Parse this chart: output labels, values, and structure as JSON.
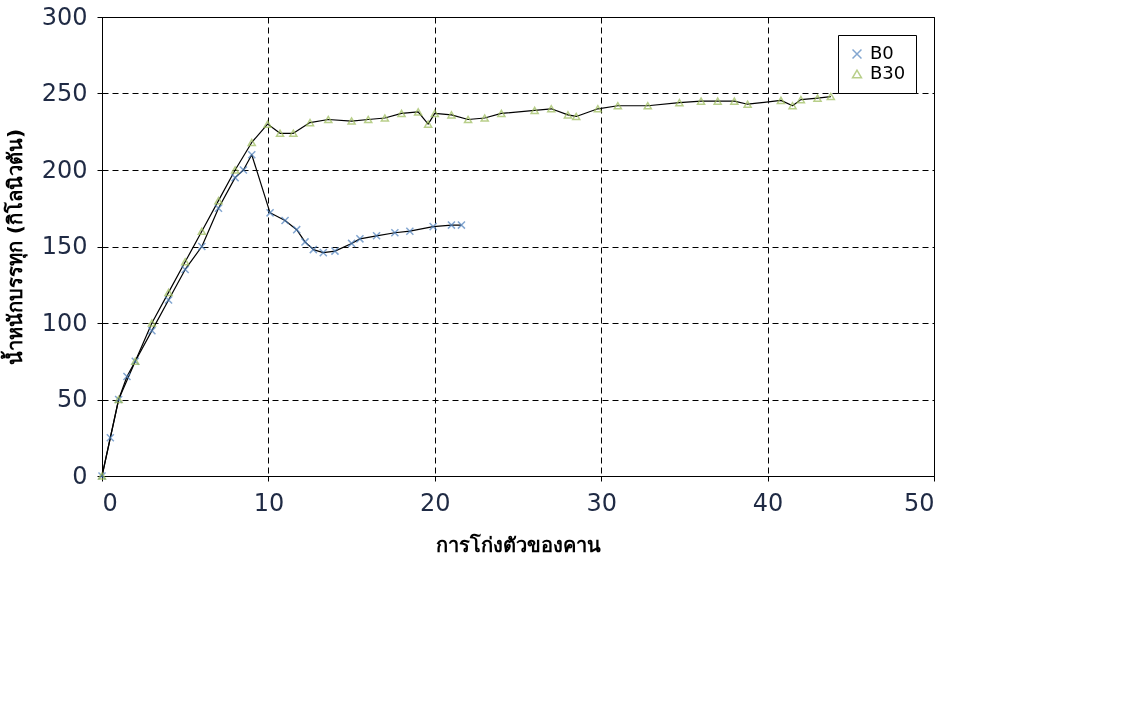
{
  "chart_data": {
    "type": "line",
    "xlabel": "การโก่งตัวของคาน",
    "ylabel": "น้ำหนักบรรทุก (กิโลนิวตัน)",
    "xlim": [
      0,
      50
    ],
    "xticks": [
      0,
      10,
      20,
      30,
      40,
      50
    ],
    "ylim": [
      0,
      300
    ],
    "yticks": [
      0,
      50,
      100,
      150,
      200,
      250,
      300
    ],
    "grid": true,
    "legend": "top right",
    "series": [
      {
        "name": "B0",
        "color": "#4f81bd",
        "marker": "cross",
        "x": [
          0,
          0.5,
          1,
          1.5,
          2,
          3,
          4,
          5,
          6,
          7,
          8,
          8.5,
          9,
          10.1,
          11,
          11.7,
          12.2,
          12.7,
          13.3,
          14,
          15,
          15.5,
          16.5,
          17.6,
          18.5,
          19.9,
          21,
          21.6
        ],
        "values": [
          0,
          25,
          50,
          65,
          75,
          95,
          115,
          135,
          150,
          175,
          195,
          200,
          210,
          172,
          167,
          161,
          153,
          148,
          146,
          147,
          152,
          155,
          157,
          159,
          160,
          163,
          164,
          164
        ]
      },
      {
        "name": "B30",
        "color": "#9bbb59",
        "marker": "triangle",
        "x": [
          0,
          1,
          2,
          3,
          4,
          5,
          6,
          7,
          8,
          9,
          9.95,
          10.7,
          11.5,
          12.5,
          13.6,
          15,
          16,
          17,
          18,
          19,
          19.6,
          20,
          21,
          22,
          23,
          24,
          26,
          27,
          28,
          28.5,
          29.8,
          31,
          32.8,
          34.7,
          36,
          37,
          38,
          38.8,
          40.8,
          41.5,
          42,
          43,
          43.8
        ],
        "values": [
          0,
          50,
          75,
          100,
          120,
          140,
          160,
          180,
          200,
          218,
          230,
          224,
          224,
          231,
          233,
          232,
          233,
          234,
          237,
          238,
          230,
          237,
          236,
          233,
          234,
          237,
          239,
          240,
          236,
          235,
          240,
          242,
          242,
          244,
          245,
          245,
          245,
          243,
          245.5,
          242,
          246,
          247,
          248
        ]
      }
    ]
  }
}
